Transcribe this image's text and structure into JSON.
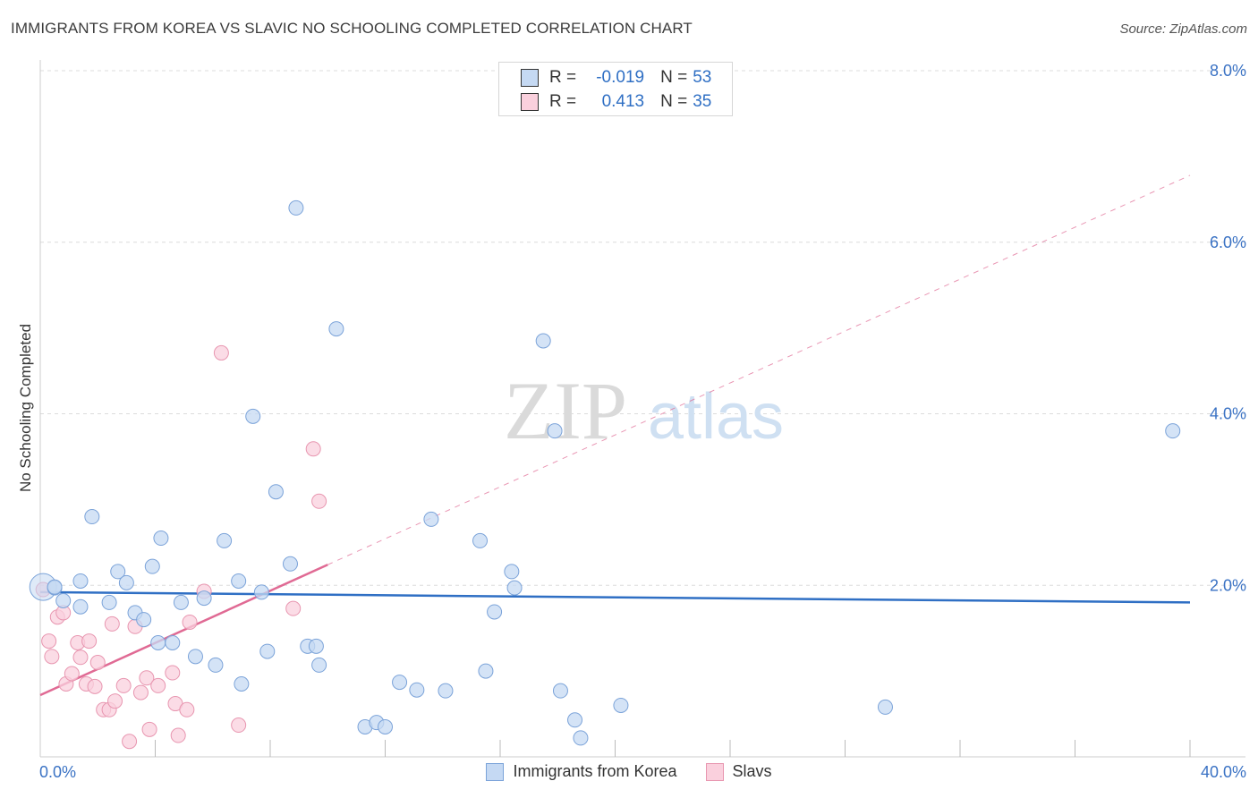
{
  "title": "IMMIGRANTS FROM KOREA VS SLAVIC NO SCHOOLING COMPLETED CORRELATION CHART",
  "source": "Source: ZipAtlas.com",
  "watermark": {
    "zip": "ZIP",
    "atlas": "atlas"
  },
  "correlation_legend": {
    "rows": [
      {
        "r_label": "R =",
        "r_value": "-0.019",
        "n_label": "N =",
        "n_value": "53",
        "color": "#7ba3d9"
      },
      {
        "r_label": "R =",
        "r_value": "0.413",
        "n_label": "N =",
        "n_value": "35",
        "color": "#e896b0"
      }
    ]
  },
  "legend": {
    "korea_label": "Immigrants from Korea",
    "slavs_label": "Slavs"
  },
  "colors": {
    "blue_fill": "#c5d9f3",
    "blue_stroke": "#7ba3d9",
    "blue_line": "#2f6fc4",
    "pink_fill": "#fad0dd",
    "pink_stroke": "#e896b0",
    "pink_line": "#e06a94",
    "grid": "#dcdcdc",
    "tick_text": "#3a72c4"
  },
  "chart_data": {
    "type": "scatter",
    "title": "IMMIGRANTS FROM KOREA VS SLAVIC NO SCHOOLING COMPLETED CORRELATION CHART",
    "xlabel": "",
    "ylabel": "No Schooling Completed",
    "xlim": [
      0,
      40
    ],
    "ylim": [
      0,
      8
    ],
    "x_tick_labels": [
      "0.0%",
      "40.0%"
    ],
    "y_ticks": [
      2,
      4,
      6,
      8
    ],
    "y_tick_labels": [
      "2.0%",
      "4.0%",
      "6.0%",
      "8.0%"
    ],
    "grid": true,
    "series": [
      {
        "name": "Immigrants from Korea",
        "r": -0.019,
        "n": 53,
        "points": [
          [
            0.1,
            1.98
          ],
          [
            0.5,
            1.97
          ],
          [
            0.8,
            1.82
          ],
          [
            1.4,
            2.05
          ],
          [
            1.4,
            1.75
          ],
          [
            1.8,
            2.8
          ],
          [
            2.4,
            1.8
          ],
          [
            2.7,
            2.16
          ],
          [
            3.0,
            2.03
          ],
          [
            3.3,
            1.68
          ],
          [
            3.6,
            1.6
          ],
          [
            3.9,
            2.22
          ],
          [
            4.1,
            1.33
          ],
          [
            4.2,
            2.55
          ],
          [
            4.6,
            1.33
          ],
          [
            4.9,
            1.8
          ],
          [
            5.4,
            1.17
          ],
          [
            5.7,
            1.85
          ],
          [
            6.1,
            1.07
          ],
          [
            6.4,
            2.52
          ],
          [
            6.9,
            2.05
          ],
          [
            7.0,
            0.85
          ],
          [
            7.4,
            3.97
          ],
          [
            7.7,
            1.92
          ],
          [
            7.9,
            1.23
          ],
          [
            8.2,
            3.09
          ],
          [
            8.7,
            2.25
          ],
          [
            8.9,
            6.4
          ],
          [
            9.3,
            1.29
          ],
          [
            9.6,
            1.29
          ],
          [
            9.7,
            1.07
          ],
          [
            10.3,
            4.99
          ],
          [
            11.3,
            0.35
          ],
          [
            11.7,
            0.4
          ],
          [
            12.0,
            0.35
          ],
          [
            12.5,
            0.87
          ],
          [
            13.1,
            0.78
          ],
          [
            13.6,
            2.77
          ],
          [
            14.1,
            0.77
          ],
          [
            15.3,
            2.52
          ],
          [
            15.5,
            1.0
          ],
          [
            15.8,
            1.69
          ],
          [
            16.4,
            2.16
          ],
          [
            16.5,
            1.97
          ],
          [
            17.5,
            4.85
          ],
          [
            17.9,
            3.8
          ],
          [
            18.1,
            0.77
          ],
          [
            18.6,
            0.43
          ],
          [
            18.8,
            0.22
          ],
          [
            20.2,
            0.6
          ],
          [
            29.4,
            0.58
          ],
          [
            39.4,
            3.8
          ],
          [
            0.5,
            1.98
          ]
        ],
        "trend": {
          "x": [
            0,
            40
          ],
          "y": [
            1.92,
            1.8
          ]
        }
      },
      {
        "name": "Slavs",
        "r": 0.413,
        "n": 35,
        "points": [
          [
            0.1,
            1.95
          ],
          [
            0.3,
            1.35
          ],
          [
            0.4,
            1.17
          ],
          [
            0.6,
            1.63
          ],
          [
            0.8,
            1.68
          ],
          [
            0.9,
            0.85
          ],
          [
            1.1,
            0.97
          ],
          [
            1.3,
            1.33
          ],
          [
            1.4,
            1.16
          ],
          [
            1.6,
            0.85
          ],
          [
            1.7,
            1.35
          ],
          [
            1.9,
            0.82
          ],
          [
            2.0,
            1.1
          ],
          [
            2.2,
            0.55
          ],
          [
            2.4,
            0.55
          ],
          [
            2.5,
            1.55
          ],
          [
            2.6,
            0.65
          ],
          [
            2.9,
            0.83
          ],
          [
            3.1,
            0.18
          ],
          [
            3.3,
            1.52
          ],
          [
            3.5,
            0.75
          ],
          [
            3.7,
            0.92
          ],
          [
            3.8,
            0.32
          ],
          [
            4.1,
            0.83
          ],
          [
            4.6,
            0.98
          ],
          [
            4.7,
            0.62
          ],
          [
            4.8,
            0.25
          ],
          [
            5.1,
            0.55
          ],
          [
            5.2,
            1.57
          ],
          [
            5.7,
            1.93
          ],
          [
            6.3,
            4.71
          ],
          [
            6.9,
            0.37
          ],
          [
            8.8,
            1.73
          ],
          [
            9.5,
            3.59
          ],
          [
            9.7,
            2.98
          ]
        ],
        "trend_solid": {
          "x": [
            0,
            10
          ],
          "y": [
            0.72,
            2.24
          ]
        },
        "trend_dashed": {
          "x": [
            10,
            40
          ],
          "y": [
            2.24,
            6.78
          ]
        }
      }
    ]
  }
}
